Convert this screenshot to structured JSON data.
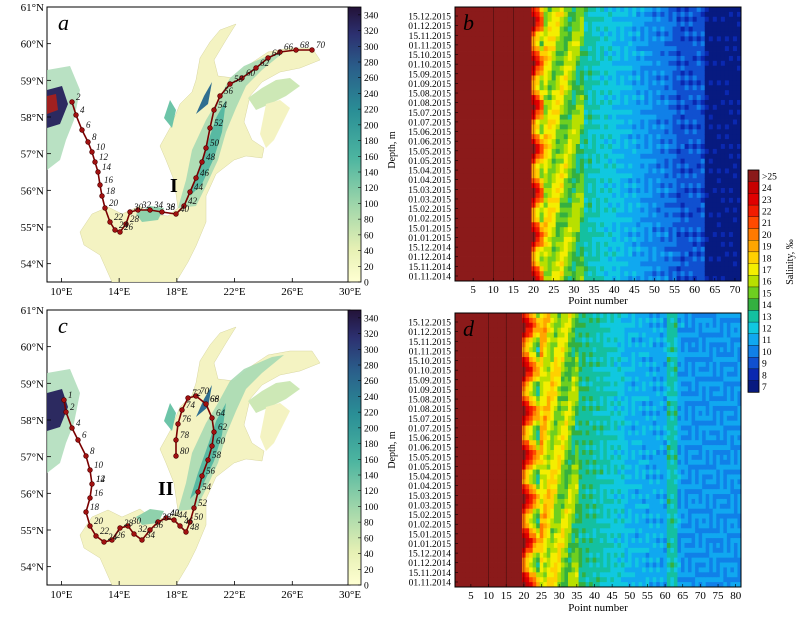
{
  "panels": {
    "a": {
      "letter": "a",
      "region_label": "I",
      "lat_ticks": [
        "54°N",
        "55°N",
        "56°N",
        "57°N",
        "58°N",
        "59°N",
        "60°N",
        "61°N"
      ],
      "lon_ticks": [
        "10°E",
        "14°E",
        "18°E",
        "22°E",
        "26°E",
        "30°E"
      ],
      "depth_ticks": [
        "0",
        "20",
        "40",
        "60",
        "80",
        "100",
        "120",
        "140",
        "160",
        "180",
        "200",
        "220",
        "240",
        "260",
        "280",
        "300",
        "320",
        "340"
      ],
      "depth_label": "Depth, m",
      "route_labels": [
        "2",
        "4",
        "6",
        "8",
        "10",
        "12",
        "14",
        "16",
        "18",
        "20",
        "22",
        "24",
        "26",
        "28",
        "30",
        "32",
        "34",
        "36",
        "38",
        "40",
        "42",
        "44",
        "46",
        "48",
        "50",
        "52",
        "54",
        "56",
        "58",
        "60",
        "62",
        "64",
        "66",
        "68",
        "70"
      ]
    },
    "b": {
      "letter": "b",
      "date_ticks": [
        "15.12.2015",
        "01.12.2015",
        "15.11.2015",
        "01.11.2015",
        "15.10.2015",
        "01.10.2015",
        "15.09.2015",
        "01.09.2015",
        "15.08.2015",
        "01.08.2015",
        "15.07.2015",
        "01.07.2015",
        "15.06.2015",
        "01.06.2015",
        "15.05.2015",
        "01.05.2015",
        "15.04.2015",
        "01.04.2015",
        "15.03.2015",
        "01.03.2015",
        "15.02.2015",
        "01.02.2015",
        "15.01.2015",
        "01.01.2015",
        "15.12.2014",
        "01.12.2014",
        "15.11.2014",
        "01.11.2014"
      ],
      "x_ticks": [
        "5",
        "10",
        "15",
        "20",
        "25",
        "30",
        "35",
        "40",
        "45",
        "50",
        "55",
        "60",
        "65",
        "70"
      ],
      "xlabel": "Point number"
    },
    "c": {
      "letter": "c",
      "region_label": "II",
      "lat_ticks": [
        "54°N",
        "55°N",
        "56°N",
        "57°N",
        "58°N",
        "59°N",
        "60°N",
        "61°N"
      ],
      "lon_ticks": [
        "10°E",
        "14°E",
        "18°E",
        "22°E",
        "26°E",
        "30°E"
      ],
      "depth_ticks": [
        "0",
        "20",
        "40",
        "60",
        "80",
        "100",
        "120",
        "140",
        "160",
        "180",
        "200",
        "220",
        "240",
        "260",
        "280",
        "300",
        "320",
        "340"
      ],
      "depth_label": "Depth, m",
      "route_labels": [
        "1",
        "2",
        "4",
        "6",
        "8",
        "10",
        "12",
        "14",
        "16",
        "18",
        "20",
        "22",
        "24",
        "26",
        "28",
        "30",
        "32",
        "34",
        "36",
        "38",
        "40",
        "42",
        "44",
        "46",
        "48",
        "50",
        "52",
        "54",
        "56",
        "58",
        "60",
        "62",
        "64",
        "66",
        "68",
        "70",
        "72",
        "74",
        "76",
        "78",
        "80"
      ]
    },
    "d": {
      "letter": "d",
      "date_ticks": [
        "15.12.2015",
        "01.12.2015",
        "15.11.2015",
        "01.11.2015",
        "15.10.2015",
        "01.10.2015",
        "15.09.2015",
        "01.09.2015",
        "15.08.2015",
        "01.08.2015",
        "15.07.2015",
        "01.07.2015",
        "15.06.2015",
        "01.06.2015",
        "15.05.2015",
        "01.05.2015",
        "15.04.2015",
        "01.04.2015",
        "15.03.2015",
        "01.03.2015",
        "15.02.2015",
        "01.02.2015",
        "15.01.2015",
        "01.01.2015",
        "15.12.2014",
        "01.12.2014",
        "15.11.2014",
        "01.11.2014"
      ],
      "x_ticks": [
        "5",
        "10",
        "15",
        "20",
        "25",
        "30",
        "35",
        "40",
        "45",
        "50",
        "55",
        "60",
        "65",
        "70",
        "75",
        "80"
      ],
      "xlabel": "Point number"
    }
  },
  "salinity_colorbar": {
    "label": "Salinity, ‰",
    "levels": [
      ">25",
      "24",
      "23",
      "22",
      "21",
      "20",
      "19",
      "18",
      "17",
      "16",
      "15",
      "14",
      "13",
      "12",
      "11",
      "10",
      "9",
      "8",
      "7"
    ],
    "colors": [
      "#8b1a1a",
      "#c80000",
      "#e00000",
      "#f21c00",
      "#ff4a00",
      "#ff7a00",
      "#ffa600",
      "#ffd000",
      "#f4ee00",
      "#b8e000",
      "#6ecf20",
      "#34b040",
      "#14c0a0",
      "#10c8e0",
      "#10a8f0",
      "#1080e8",
      "#1050d0",
      "#0a28b0",
      "#071a80"
    ]
  },
  "depth_colors": {
    "shallow": "#fbf7c8",
    "mid": "#9fd6b0",
    "deep": "#2e9e9a",
    "deepest": "#2a1848"
  },
  "chart_data": [
    {
      "panel": "a",
      "type": "heatmap",
      "description_source": "bathymetry map with route I",
      "xlim_lon": [
        9,
        30
      ],
      "ylim_lat": [
        53.5,
        61
      ],
      "colorbar_range_m": [
        0,
        340
      ],
      "route_point_count": 70
    },
    {
      "panel": "b",
      "type": "heatmap",
      "xlabel": "Point number",
      "xlim": [
        1,
        71
      ],
      "time_range": [
        "01.11.2014",
        "15.12.2015"
      ],
      "colorbar_range": [
        7,
        25
      ]
    },
    {
      "panel": "c",
      "type": "heatmap",
      "xlim_lon": [
        9,
        30
      ],
      "ylim_lat": [
        53.5,
        61
      ],
      "colorbar_range_m": [
        0,
        340
      ],
      "route_point_count": 81
    },
    {
      "panel": "d",
      "type": "heatmap",
      "xlabel": "Point number",
      "xlim": [
        1,
        81
      ],
      "time_range": [
        "01.11.2014",
        "15.12.2015"
      ],
      "colorbar_range": [
        7,
        25
      ]
    }
  ]
}
